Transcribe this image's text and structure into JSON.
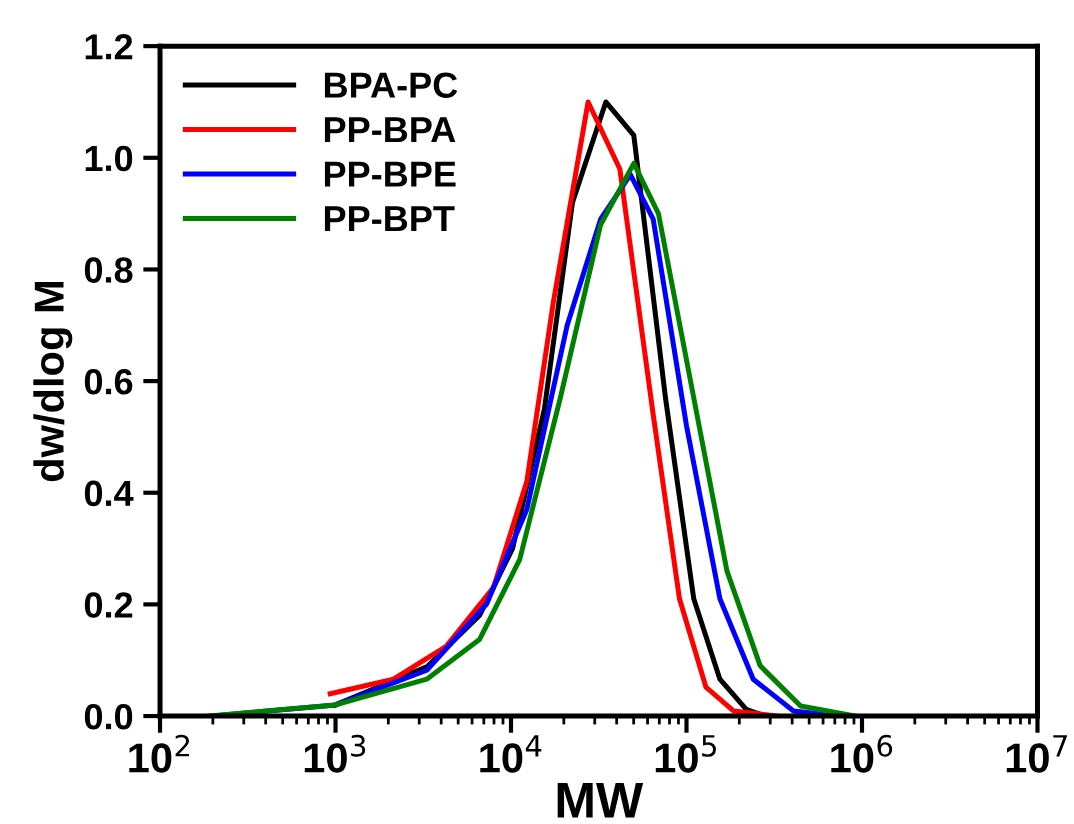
{
  "chart_data": {
    "type": "line",
    "xlabel": "MW",
    "ylabel": "dw/dlog M",
    "log": "x",
    "xlim": [
      100,
      10000000
    ],
    "xticks": [
      {
        "value": 100,
        "label": "10$^{2}$"
      },
      {
        "value": 1000,
        "label": "10$^{3}$"
      },
      {
        "value": 10000,
        "label": "10$^{4}$"
      },
      {
        "value": 100000,
        "label": "10$^{5}$"
      },
      {
        "value": 1000000,
        "label": "10$^{6}$"
      },
      {
        "value": 10000000,
        "label": "10$^{7}$"
      }
    ],
    "ylim": [
      0,
      1.2
    ],
    "yticks": [
      {
        "value": 0,
        "label": "0.0"
      },
      {
        "value": 0.2,
        "label": "0.2"
      },
      {
        "value": 0.4,
        "label": "0.4"
      },
      {
        "value": 0.6,
        "label": "0.6"
      },
      {
        "value": 0.8,
        "label": "0.8"
      },
      {
        "value": 1.0,
        "label": "1.0"
      },
      {
        "value": 1.2,
        "label": "1.2"
      }
    ],
    "legend": "top left",
    "grid": false,
    "marker": "none",
    "line_style": "solid",
    "series": [
      {
        "name": "BPA-PC",
        "color": "#000000",
        "x": [
          1000,
          3310,
          6610,
          10200,
          15500,
          22400,
          34700,
          50100,
          75900,
          110000,
          155000,
          219000,
          282000
        ],
        "values": [
          0.02,
          0.088,
          0.18,
          0.3,
          0.55,
          0.92,
          1.1,
          1.04,
          0.57,
          0.21,
          0.066,
          0.012,
          0
        ]
      },
      {
        "name": "PP-BPA",
        "color": "#ff0000",
        "x": [
          933,
          2140,
          4270,
          7940,
          12300,
          17400,
          27500,
          41700,
          64600,
          91200,
          129000,
          186000,
          324000
        ],
        "values": [
          0.04,
          0.066,
          0.125,
          0.23,
          0.42,
          0.74,
          1.1,
          0.98,
          0.54,
          0.21,
          0.052,
          0.009,
          0
        ]
      },
      {
        "name": "PP-BPE",
        "color": "#0000ff",
        "x": [
          200,
          1000,
          3310,
          7240,
          12300,
          20900,
          32400,
          47900,
          64600,
          100000,
          155000,
          240000,
          407000,
          741000
        ],
        "values": [
          0,
          0.02,
          0.082,
          0.2,
          0.37,
          0.7,
          0.89,
          0.97,
          0.89,
          0.52,
          0.21,
          0.066,
          0.009,
          0
        ]
      },
      {
        "name": "PP-BPT",
        "color": "#008000",
        "x": [
          191,
          1000,
          3310,
          6610,
          11200,
          19100,
          32400,
          50100,
          69200,
          110000,
          170000,
          263000,
          447000,
          912000
        ],
        "values": [
          0,
          0.02,
          0.066,
          0.137,
          0.28,
          0.57,
          0.88,
          0.99,
          0.9,
          0.57,
          0.26,
          0.09,
          0.018,
          0
        ]
      }
    ]
  }
}
